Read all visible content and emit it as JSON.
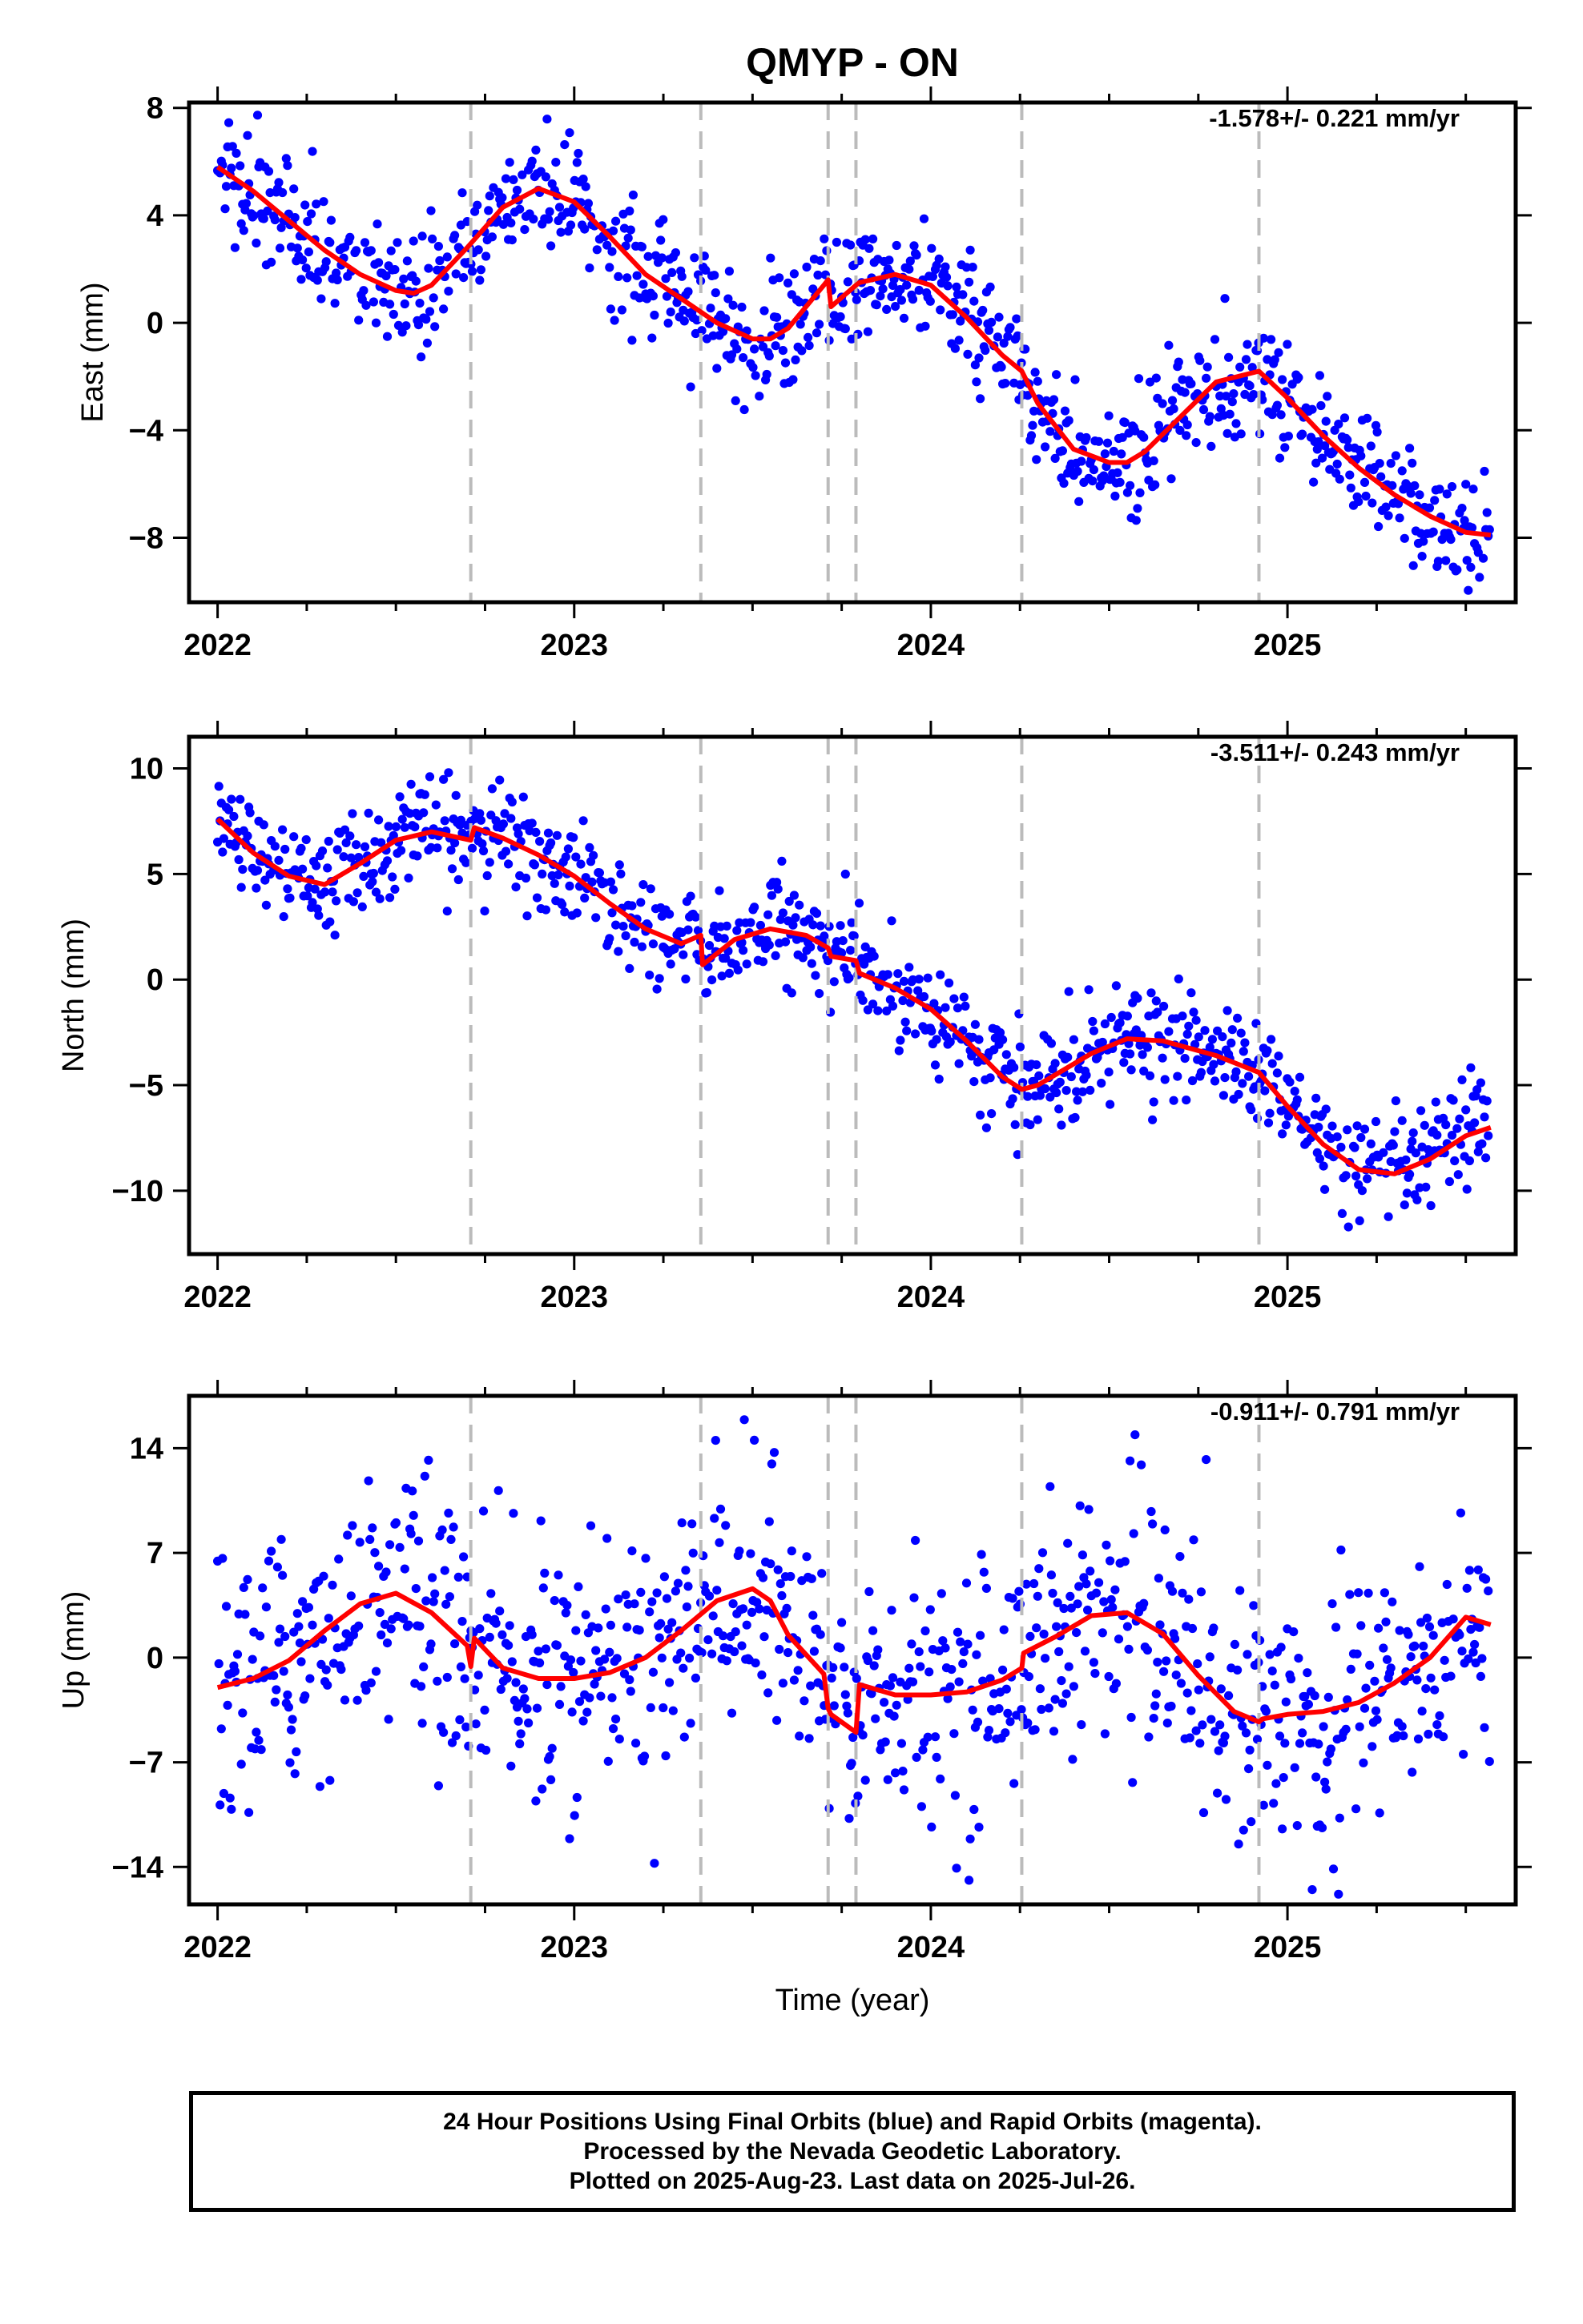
{
  "chart_data": {
    "title": "QMYP - ON",
    "type": "scatter",
    "xlabel": "Time (year)",
    "xlim": [
      2021.92,
      2025.64
    ],
    "xticks": [
      2022,
      2023,
      2024,
      2025
    ],
    "x_minor_step": 0.25,
    "grid": false,
    "legend": "none",
    "equipment_change_epochs": [
      2022.71,
      2023.355,
      2023.712,
      2023.79,
      2024.255,
      2024.92
    ],
    "colors": {
      "final_orbits": "#0000ff",
      "model_fit": "#ff0000",
      "epoch_lines": "#bbbbbb"
    },
    "panels": [
      {
        "ylabel": "East (mm)",
        "ylim": [
          -10.4,
          8.2
        ],
        "yticks": [
          8,
          4,
          0,
          -4,
          -8
        ],
        "ytick_labels": [
          "8",
          "4",
          "0",
          "−4",
          "−8"
        ],
        "rate_text": "-1.578+/- 0.221 mm/yr",
        "scatter_sd": 1.1,
        "model_fit": {
          "x": [
            2022.0,
            2022.1,
            2022.2,
            2022.3,
            2022.4,
            2022.5,
            2022.55,
            2022.6,
            2022.7,
            2022.8,
            2022.9,
            2023.0,
            2023.1,
            2023.2,
            2023.3,
            2023.4,
            2023.5,
            2023.55,
            2023.6,
            2023.7,
            2023.712,
            2023.72,
            2023.79,
            2023.8,
            2023.9,
            2024.0,
            2024.1,
            2024.2,
            2024.255,
            2024.3,
            2024.4,
            2024.5,
            2024.55,
            2024.6,
            2024.7,
            2024.8,
            2024.92,
            2025.0,
            2025.1,
            2025.2,
            2025.3,
            2025.4,
            2025.5,
            2025.57
          ],
          "y": [
            5.8,
            4.9,
            3.8,
            2.7,
            1.8,
            1.2,
            1.1,
            1.4,
            2.8,
            4.3,
            5.0,
            4.5,
            3.2,
            1.8,
            0.9,
            0.0,
            -0.6,
            -0.6,
            -0.2,
            1.4,
            1.6,
            0.6,
            1.4,
            1.5,
            1.8,
            1.4,
            0.2,
            -1.2,
            -1.8,
            -3.0,
            -4.7,
            -5.2,
            -5.2,
            -4.8,
            -3.5,
            -2.2,
            -1.8,
            -2.8,
            -4.2,
            -5.4,
            -6.4,
            -7.2,
            -7.8,
            -7.9
          ]
        }
      },
      {
        "ylabel": "North (mm)",
        "ylim": [
          -13,
          11.5
        ],
        "yticks": [
          10,
          5,
          0,
          -5,
          -10
        ],
        "ytick_labels": [
          "10",
          "5",
          "0",
          "−5",
          "−10"
        ],
        "rate_text": "-3.511+/- 0.243 mm/yr",
        "scatter_sd": 1.2,
        "model_fit": {
          "x": [
            2022.0,
            2022.1,
            2022.2,
            2022.3,
            2022.4,
            2022.5,
            2022.6,
            2022.71,
            2022.72,
            2022.8,
            2022.9,
            2023.0,
            2023.1,
            2023.2,
            2023.3,
            2023.355,
            2023.36,
            2023.45,
            2023.55,
            2023.65,
            2023.712,
            2023.72,
            2023.79,
            2023.8,
            2023.9,
            2024.0,
            2024.1,
            2024.2,
            2024.255,
            2024.3,
            2024.45,
            2024.55,
            2024.65,
            2024.8,
            2024.92,
            2025.0,
            2025.1,
            2025.2,
            2025.3,
            2025.4,
            2025.5,
            2025.57
          ],
          "y": [
            7.6,
            6.0,
            4.9,
            4.5,
            5.5,
            6.6,
            7.0,
            6.6,
            7.2,
            6.7,
            5.9,
            4.9,
            3.6,
            2.4,
            1.7,
            2.1,
            0.7,
            1.9,
            2.4,
            2.1,
            1.5,
            1.1,
            0.9,
            0.3,
            -0.4,
            -1.4,
            -2.9,
            -4.6,
            -5.2,
            -5.0,
            -3.5,
            -2.8,
            -2.9,
            -3.6,
            -4.4,
            -6.0,
            -7.8,
            -9.0,
            -9.2,
            -8.5,
            -7.4,
            -7.0
          ]
        }
      },
      {
        "ylabel": "Up (mm)",
        "ylim": [
          -16.5,
          17.5
        ],
        "yticks": [
          14,
          7,
          0,
          -7,
          -14
        ],
        "ytick_labels": [
          "14",
          "7",
          "0",
          "−7",
          "−14"
        ],
        "rate_text": "-0.911+/- 0.791 mm/yr",
        "scatter_sd": 4.2,
        "model_fit": {
          "x": [
            2022.0,
            2022.1,
            2022.2,
            2022.3,
            2022.4,
            2022.5,
            2022.6,
            2022.7,
            2022.71,
            2022.72,
            2022.8,
            2022.9,
            2023.0,
            2023.1,
            2023.2,
            2023.3,
            2023.4,
            2023.5,
            2023.55,
            2023.6,
            2023.7,
            2023.712,
            2023.72,
            2023.79,
            2023.8,
            2023.9,
            2024.0,
            2024.1,
            2024.2,
            2024.255,
            2024.26,
            2024.35,
            2024.45,
            2024.55,
            2024.65,
            2024.75,
            2024.85,
            2024.92,
            2024.93,
            2025.0,
            2025.1,
            2025.2,
            2025.3,
            2025.4,
            2025.5,
            2025.57
          ],
          "y": [
            -2.0,
            -1.4,
            -0.2,
            1.8,
            3.6,
            4.3,
            3.0,
            0.8,
            -0.6,
            1.3,
            -0.7,
            -1.4,
            -1.4,
            -1.0,
            0.0,
            1.8,
            3.8,
            4.6,
            3.8,
            1.5,
            -1.1,
            -3.4,
            -3.8,
            -5.0,
            -1.8,
            -2.5,
            -2.5,
            -2.3,
            -1.5,
            -0.7,
            0.3,
            1.4,
            2.8,
            3.0,
            1.6,
            -1.2,
            -3.6,
            -4.3,
            -4.1,
            -3.8,
            -3.6,
            -3.0,
            -1.7,
            0.0,
            2.7,
            2.2
          ]
        }
      }
    ]
  },
  "footer": {
    "line1": "24 Hour Positions Using Final Orbits (blue) and Rapid Orbits (magenta).",
    "line2": "Processed by the Nevada Geodetic Laboratory.",
    "line3": "Plotted on 2025-Aug-23. Last data on 2025-Jul-26."
  }
}
